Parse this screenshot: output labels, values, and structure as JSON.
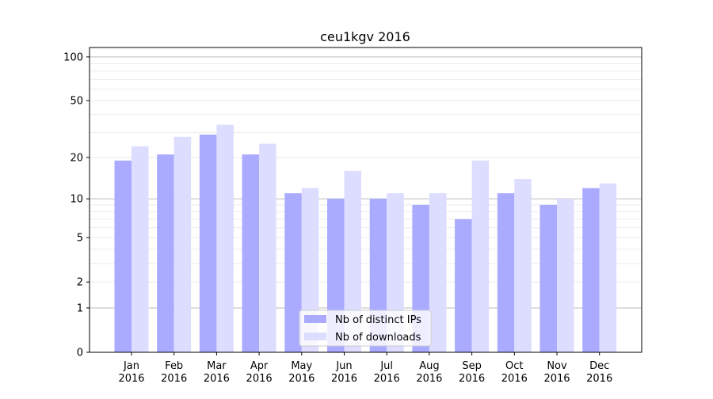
{
  "chart_data": {
    "type": "bar",
    "title": "ceu1kgv 2016",
    "xlabel": "",
    "ylabel": "",
    "yscale": "symlog (log10(1+y))",
    "ylim": [
      0,
      116
    ],
    "yticks": [
      0,
      1,
      2,
      5,
      10,
      20,
      50,
      100
    ],
    "grid": "horizontal, major and minor",
    "legend_position": "lower center",
    "categories": [
      "Jan\n2016",
      "Feb\n2016",
      "Mar\n2016",
      "Apr\n2016",
      "May\n2016",
      "Jun\n2016",
      "Jul\n2016",
      "Aug\n2016",
      "Sep\n2016",
      "Oct\n2016",
      "Nov\n2016",
      "Dec\n2016"
    ],
    "category_months": [
      "Jan",
      "Feb",
      "Mar",
      "Apr",
      "May",
      "Jun",
      "Jul",
      "Aug",
      "Sep",
      "Oct",
      "Nov",
      "Dec"
    ],
    "category_year": "2016",
    "series": [
      {
        "name": "Nb of distinct IPs",
        "color": "#aaaaff",
        "values": [
          19,
          21,
          29,
          21,
          11,
          10,
          10,
          9,
          7,
          11,
          9,
          12
        ]
      },
      {
        "name": "Nb of downloads",
        "color": "#ddddff",
        "values": [
          24,
          28,
          34,
          25,
          12,
          16,
          11,
          11,
          19,
          14,
          10,
          13
        ]
      }
    ]
  }
}
